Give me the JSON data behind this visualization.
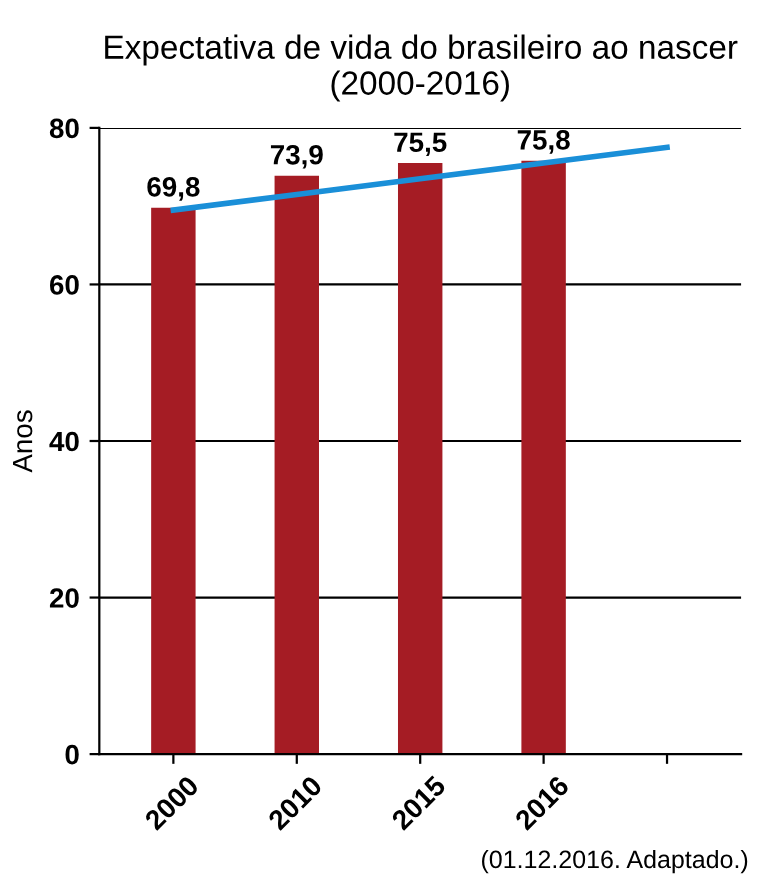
{
  "chart_data": {
    "type": "bar",
    "title": "Expectativa de vida do brasileiro ao nascer\n(2000-2016)",
    "ylabel": "Anos",
    "categories": [
      "2000",
      "2010",
      "2015",
      "2016",
      null
    ],
    "series": [
      {
        "color": "#a51c24",
        "values": [
          69.8,
          73.9,
          75.5,
          75.8,
          null
        ],
        "value_labels": [
          "69,8",
          "73,9",
          "75,5",
          "75,8",
          null
        ]
      },
      {
        "type": "line",
        "color": "#1a8fd8",
        "values": [
          69.5,
          71.5,
          73.5,
          75.5,
          77.5
        ]
      }
    ],
    "ylim": [
      0,
      80
    ],
    "yticks": [
      0,
      20,
      40,
      60,
      80
    ],
    "grid": "y",
    "legend": false,
    "marker": "none",
    "line_style": "solid",
    "annotations": [
      "(01.12.2016. Adaptado.)"
    ]
  }
}
